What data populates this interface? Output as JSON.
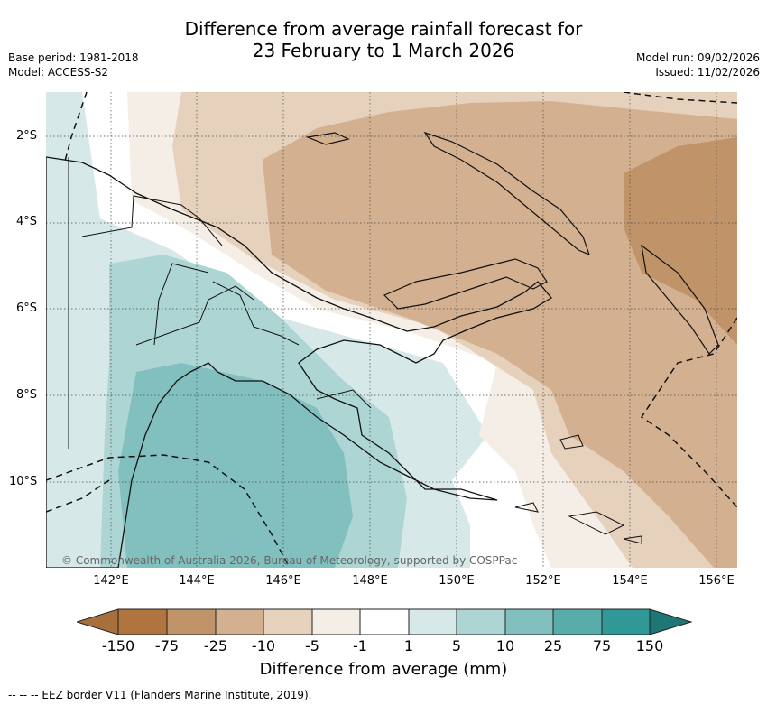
{
  "title": {
    "line1": "Difference from average rainfall forecast for",
    "line2": "23 February to 1 March 2026"
  },
  "meta": {
    "base_period": "Base period: 1981-2018",
    "model": "Model: ACCESS-S2",
    "model_run": "Model run: 09/02/2026",
    "issued": "Issued: 11/02/2026"
  },
  "copyright": "© Commonwealth of Australia 2026, Bureau of Meteorology, supported by COSPPac",
  "lat_labels": [
    "2°S",
    "4°S",
    "6°S",
    "8°S",
    "10°S"
  ],
  "lon_labels": [
    "142°E",
    "144°E",
    "146°E",
    "148°E",
    "150°E",
    "152°E",
    "154°E",
    "156°E"
  ],
  "colorbar": {
    "labels": [
      "-150",
      "-75",
      "-25",
      "-10",
      "-5",
      "-1",
      "1",
      "5",
      "10",
      "25",
      "75",
      "150"
    ],
    "colors": [
      "#a66f3c",
      "#b0743e",
      "#c09368",
      "#d3b190",
      "#e6d1bd",
      "#f5eee7",
      "#ffffff",
      "#d6e9e8",
      "#acd5d4",
      "#82c0bf",
      "#5aacab",
      "#309998",
      "#1e7775"
    ],
    "title": "Difference from average (mm)"
  },
  "footer": "--  --  -- EEZ border V11 (Flanders Marine Institute, 2019)."
}
